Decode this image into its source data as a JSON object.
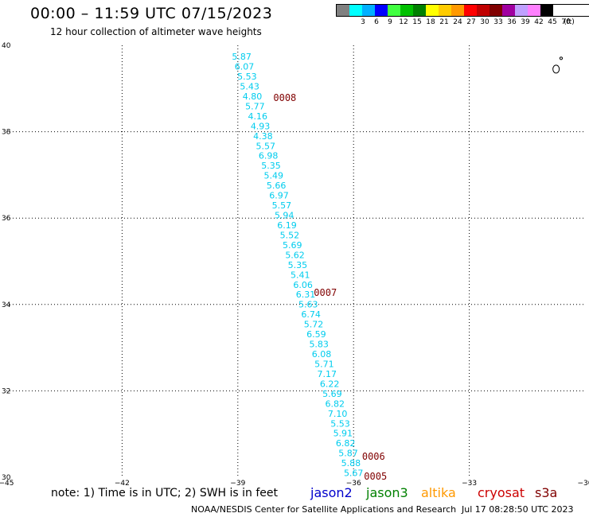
{
  "header": {
    "title": "00:00 – 11:59 UTC 07/15/2023",
    "subtitle": "12 hour collection of altimeter wave heights"
  },
  "legend": {
    "unit": "(ft)",
    "items": [
      {
        "color": "#808080",
        "label": ""
      },
      {
        "color": "#00ffff",
        "label": "3"
      },
      {
        "color": "#00b0ff",
        "label": "6"
      },
      {
        "color": "#0000ff",
        "label": "9"
      },
      {
        "color": "#40ff40",
        "label": "12"
      },
      {
        "color": "#00c000",
        "label": "15"
      },
      {
        "color": "#008000",
        "label": "18"
      },
      {
        "color": "#ffff00",
        "label": "21"
      },
      {
        "color": "#ffcc00",
        "label": "24"
      },
      {
        "color": "#ff9900",
        "label": "27"
      },
      {
        "color": "#ff0000",
        "label": "30"
      },
      {
        "color": "#c00000",
        "label": "33"
      },
      {
        "color": "#800000",
        "label": "36"
      },
      {
        "color": "#a000a0",
        "label": "39"
      },
      {
        "color": "#c0a0ff",
        "label": "42"
      },
      {
        "color": "#ff80ff",
        "label": "45"
      },
      {
        "color": "#000000",
        "label": "70"
      }
    ]
  },
  "map": {
    "axes": {
      "lon_ticks": [
        -45,
        -42,
        -39,
        -36,
        -33,
        -30
      ],
      "lon_labels": [
        "−45",
        "−42",
        "−39",
        "−36",
        "−33",
        "−30"
      ],
      "lat_ticks": [
        30,
        32,
        34,
        36,
        38,
        40
      ],
      "lat_labels": [
        "30",
        "32",
        "34",
        "36",
        "38",
        "40"
      ],
      "lon_range": [
        -45,
        -30
      ],
      "lat_range": [
        30,
        40
      ]
    },
    "track_color": "#00ccee",
    "time_color": "#800000",
    "wave_heights": [
      "5.87",
      "6.07",
      "5.53",
      "5.43",
      "4.80",
      "5.77",
      "4.16",
      "4.93",
      "4.38",
      "5.57",
      "6.98",
      "5.35",
      "5.49",
      "5.66",
      "6.97",
      "5.57",
      "5.94",
      "6.19",
      "5.52",
      "5.69",
      "5.62",
      "5.35",
      "5.41",
      "6.06",
      "6.31",
      "5.63",
      "6.74",
      "5.72",
      "6.59",
      "5.83",
      "6.08",
      "5.71",
      "7.17",
      "6.22",
      "5.69",
      "6.82",
      "7.10",
      "5.53",
      "5.91",
      "6.82",
      "5.87",
      "5.88",
      "5.67"
    ],
    "time_labels": [
      {
        "text": "0008",
        "lon": -38.08,
        "lat": 38.78
      },
      {
        "text": "0007",
        "lon": -37.03,
        "lat": 34.27
      },
      {
        "text": "0006",
        "lon": -35.78,
        "lat": 30.48
      },
      {
        "text": "0005",
        "lon": -35.73,
        "lat": 30.02
      }
    ]
  },
  "footer": {
    "note": "note:  1) Time is in UTC;  2) SWH is in feet",
    "satellites": [
      {
        "name": "jason2",
        "color": "#0000cc"
      },
      {
        "name": "jason3",
        "color": "#008000"
      },
      {
        "name": "altika",
        "color": "#ff9900"
      },
      {
        "name": "cryosat",
        "color": "#cc0000"
      },
      {
        "name": "s3a",
        "color": "#800000"
      }
    ],
    "credit": "NOAA/NESDIS Center for Satellite Applications and Research",
    "timestamp": "Jul 17 08:28:50 UTC 2023"
  }
}
